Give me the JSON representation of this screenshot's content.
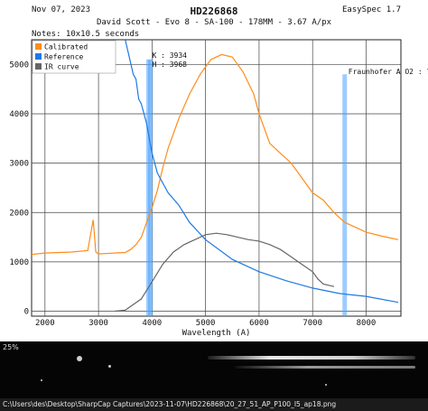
{
  "header": {
    "date": "Nov 07, 2023",
    "app": "EasySpec 1.7",
    "title": "HD226868",
    "subtitle": "David Scott - Evo 8 - SA-100 - 178MM - 3.67 A/px",
    "notes": "Notes: 10x10.5 seconds"
  },
  "chart_data": {
    "type": "line",
    "title": "HD226868",
    "xlabel": "Wavelength (A)",
    "ylabel": "",
    "xlim": [
      1750,
      8650
    ],
    "ylim": [
      -100,
      5500
    ],
    "xticks": [
      2000,
      3000,
      4000,
      5000,
      6000,
      7000,
      8000
    ],
    "yticks": [
      0,
      1000,
      2000,
      3000,
      4000,
      5000
    ],
    "grid": true,
    "legend_position": "top-left",
    "series": [
      {
        "name": "Calibrated",
        "color": "#ff8c1a",
        "x": [
          1750,
          2000,
          2500,
          2800,
          2900,
          2950,
          3000,
          3500,
          3600,
          3700,
          3800,
          3850,
          3900,
          4000,
          4100,
          4200,
          4300,
          4500,
          4700,
          4900,
          5000,
          5100,
          5300,
          5500,
          5700,
          5900,
          6000,
          6200,
          6400,
          6600,
          6800,
          7000,
          7200,
          7400,
          7600,
          7800,
          8000,
          8300,
          8600
        ],
        "y": [
          1150,
          1180,
          1200,
          1230,
          1850,
          1200,
          1160,
          1190,
          1250,
          1350,
          1500,
          1650,
          1800,
          2100,
          2450,
          2900,
          3300,
          3900,
          4400,
          4800,
          4950,
          5100,
          5200,
          5150,
          4850,
          4400,
          4000,
          3400,
          3200,
          3000,
          2700,
          2400,
          2250,
          2000,
          1800,
          1700,
          1600,
          1520,
          1450
        ]
      },
      {
        "name": "Reference",
        "color": "#1e78e6",
        "x": [
          3500,
          3650,
          3700,
          3750,
          3800,
          3900,
          3950,
          4000,
          4100,
          4200,
          4300,
          4500,
          4700,
          5000,
          5500,
          6000,
          6500,
          7000,
          7500,
          8000,
          8600
        ],
        "y": [
          5500,
          4800,
          4700,
          4300,
          4200,
          3800,
          3500,
          3200,
          2800,
          2600,
          2400,
          2150,
          1800,
          1450,
          1050,
          800,
          620,
          470,
          360,
          300,
          180
        ]
      },
      {
        "name": "IR curve",
        "color": "#666666",
        "x": [
          3300,
          3500,
          3800,
          4000,
          4200,
          4400,
          4600,
          4800,
          5000,
          5200,
          5400,
          5600,
          5800,
          6000,
          6200,
          6400,
          6600,
          6800,
          7000,
          7100,
          7200,
          7400
        ],
        "y": [
          0,
          20,
          250,
          600,
          950,
          1200,
          1350,
          1450,
          1550,
          1580,
          1550,
          1500,
          1450,
          1420,
          1350,
          1250,
          1100,
          950,
          800,
          650,
          550,
          500
        ]
      }
    ],
    "markers": [
      {
        "label": "K : 3934",
        "x": 3934
      },
      {
        "label": "H : 3968",
        "x": 3968
      },
      {
        "label": "Fraunhofer A O2 : 7",
        "x": 7600
      }
    ]
  },
  "image_strip": {
    "zoom": "25%",
    "path": "C:\\Users\\des\\Desktop\\SharpCap Captures\\2023-11-07\\HD226868\\20_27_51_AP_P100_I5_ap18.png"
  }
}
